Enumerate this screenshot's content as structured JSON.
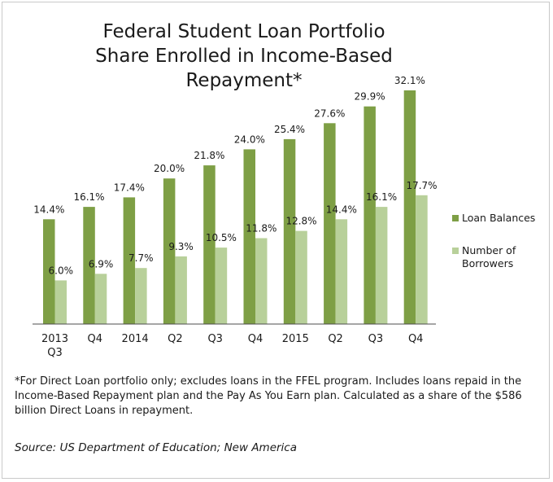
{
  "chart_data": {
    "type": "bar",
    "title_lines": [
      "Federal Student Loan Portfolio",
      "Share Enrolled in Income-Based",
      "Repayment*"
    ],
    "categories": [
      [
        "2013",
        "Q3"
      ],
      [
        "Q4"
      ],
      [
        "2014"
      ],
      [
        "Q2"
      ],
      [
        "Q3"
      ],
      [
        "Q4"
      ],
      [
        "2015"
      ],
      [
        "Q2"
      ],
      [
        "Q3"
      ],
      [
        "Q4"
      ]
    ],
    "series": [
      {
        "name": "Loan Balances",
        "color": "#7e9f45",
        "values": [
          14.4,
          16.1,
          17.4,
          20.0,
          21.8,
          24.0,
          25.4,
          27.6,
          29.9,
          32.1
        ],
        "labels": [
          "14.4%",
          "16.1%",
          "17.4%",
          "20.0%",
          "21.8%",
          "24.0%",
          "25.4%",
          "27.6%",
          "29.9%",
          "32.1%"
        ]
      },
      {
        "name": "Number of Borrowers",
        "color": "#b8d09a",
        "values": [
          6.0,
          6.9,
          7.7,
          9.3,
          10.5,
          11.8,
          12.8,
          14.4,
          16.1,
          17.7
        ],
        "labels": [
          "6.0%",
          "6.9%",
          "7.7%",
          "9.3%",
          "10.5%",
          "11.8%",
          "12.8%",
          "14.4%",
          "16.1%",
          "17.7%"
        ]
      }
    ],
    "legend_position": "right",
    "grid": false,
    "ylim": [
      0,
      34
    ]
  },
  "legend": {
    "items": [
      {
        "label_lines": [
          "Loan Balances"
        ],
        "color": "#7e9f45"
      },
      {
        "label_lines": [
          "Number of",
          "Borrowers"
        ],
        "color": "#b8d09a"
      }
    ]
  },
  "footnote": "*For Direct Loan portfolio only; excludes loans in the FFEL program. Includes loans repaid in the Income-Based Repayment plan and the Pay As You Earn plan. Calculated as a share of the $586 billion Direct Loans in repayment.",
  "source": "Source: US Department of Education; New America",
  "colors": {
    "axis": "#4d4d4d",
    "text": "#1a1a1a",
    "frame": "#c9c9c9"
  }
}
